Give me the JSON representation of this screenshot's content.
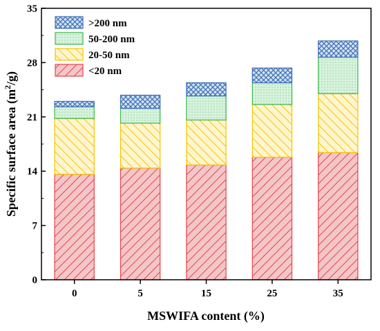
{
  "chart_data": {
    "type": "bar",
    "stacked": true,
    "categories": [
      "0",
      "5",
      "15",
      "25",
      "35"
    ],
    "xlabel": "MSWIFA content (%)",
    "ylabel_main": "Specific surface area (m",
    "ylabel_sup": "2",
    "ylabel_tail": "/g)",
    "ylim": [
      0,
      35
    ],
    "yticks": [
      "0",
      "7",
      "14",
      "21",
      "28",
      "35"
    ],
    "ytick_values": [
      0,
      7,
      14,
      21,
      28,
      35
    ],
    "legend_position": "top-left",
    "series": [
      {
        "name": "<20  nm",
        "values": [
          13.6,
          14.4,
          14.8,
          15.8,
          16.4
        ],
        "fill": "#f4c6c8",
        "line": "#e2454d",
        "pattern": "diag-right"
      },
      {
        "name": "20-50  nm",
        "values": [
          7.2,
          5.8,
          5.8,
          6.8,
          7.6
        ],
        "fill": "#fff5cf",
        "line": "#f5c400",
        "pattern": "diag-left"
      },
      {
        "name": "50-200 nm",
        "values": [
          1.5,
          1.9,
          3.1,
          2.8,
          4.7
        ],
        "fill": "#d8f2de",
        "line": "#3cb84a",
        "pattern": "dots"
      },
      {
        "name": ">200 nm",
        "values": [
          0.7,
          1.7,
          1.7,
          1.9,
          2.1
        ],
        "fill": "#d4e3f3",
        "line": "#3c6eb5",
        "pattern": "cross"
      }
    ],
    "legend_order": [
      3,
      2,
      1,
      0
    ]
  }
}
